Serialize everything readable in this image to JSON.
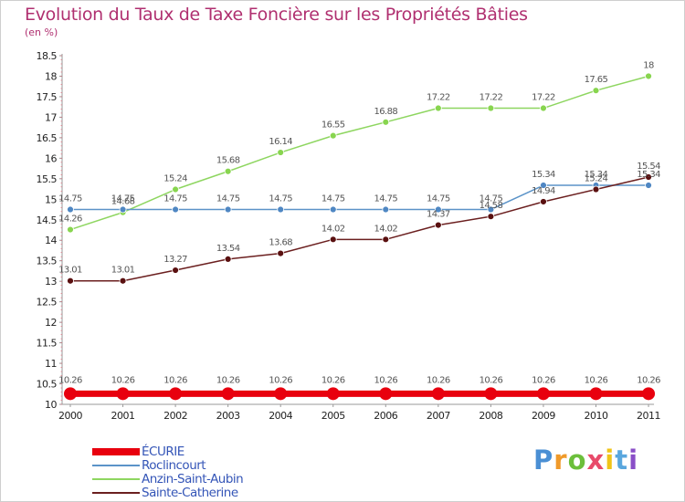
{
  "header": {
    "title": "Evolution du Taux de Taxe Foncière sur les Propriétés Bâties",
    "unit": "(en %)"
  },
  "logo": {
    "text": "Proxiti"
  },
  "chart_data": {
    "type": "line",
    "title": "Evolution du Taux de Taxe Foncière sur les Propriétés Bâties",
    "ylabel": "(en %)",
    "xlabel": "",
    "categories": [
      "2000",
      "2001",
      "2002",
      "2003",
      "2004",
      "2005",
      "2006",
      "2007",
      "2008",
      "2009",
      "2010",
      "2011"
    ],
    "ylim": [
      10,
      18.5
    ],
    "yticks": [
      "10",
      "10.5",
      "11",
      "11.5",
      "12",
      "12.5",
      "13",
      "13.5",
      "14",
      "14.5",
      "15",
      "15.5",
      "16",
      "16.5",
      "17",
      "17.5",
      "18",
      "18.5"
    ],
    "grid": false,
    "legend_position": "bottom-left",
    "series": [
      {
        "name": "ÉCURIE",
        "color": "#e8000e",
        "values": [
          10.26,
          10.26,
          10.26,
          10.26,
          10.26,
          10.26,
          10.26,
          10.26,
          10.26,
          10.26,
          10.26,
          10.26
        ],
        "labels": [
          "10.26",
          "10.26",
          "10.26",
          "10.26",
          "10.26",
          "10.26",
          "10.26",
          "10.26",
          "10.26",
          "10.26",
          "10.26",
          "10.26"
        ]
      },
      {
        "name": "Roclincourt",
        "color": "#5b93c8",
        "values": [
          14.75,
          14.75,
          14.75,
          14.75,
          14.75,
          14.75,
          14.75,
          14.75,
          14.75,
          15.34,
          15.34,
          15.34
        ],
        "labels": [
          "14.75",
          "14.75",
          "14.75",
          "14.75",
          "14.75",
          "14.75",
          "14.75",
          "14.75",
          "14.75",
          "15.34",
          "15.34",
          "15.34"
        ]
      },
      {
        "name": "Anzin-Saint-Aubin",
        "color": "#8ed660",
        "values": [
          14.26,
          14.68,
          15.24,
          15.68,
          16.14,
          16.55,
          16.88,
          17.22,
          17.22,
          17.22,
          17.65,
          18
        ],
        "labels": [
          "14.26",
          "14.68",
          "15.24",
          "15.68",
          "16.14",
          "16.55",
          "16.88",
          "17.22",
          "17.22",
          "17.22",
          "17.65",
          "18"
        ]
      },
      {
        "name": "Sainte-Catherine",
        "color": "#6b1f1f",
        "values": [
          13.01,
          13.01,
          13.27,
          13.54,
          13.68,
          14.02,
          14.02,
          14.37,
          14.58,
          14.94,
          15.24,
          15.54
        ],
        "labels": [
          "13.01",
          "13.01",
          "13.27",
          "13.54",
          "13.68",
          "14.02",
          "14.02",
          "14.37",
          "14.58",
          "14.94",
          "15.24",
          "15.54"
        ]
      }
    ]
  }
}
